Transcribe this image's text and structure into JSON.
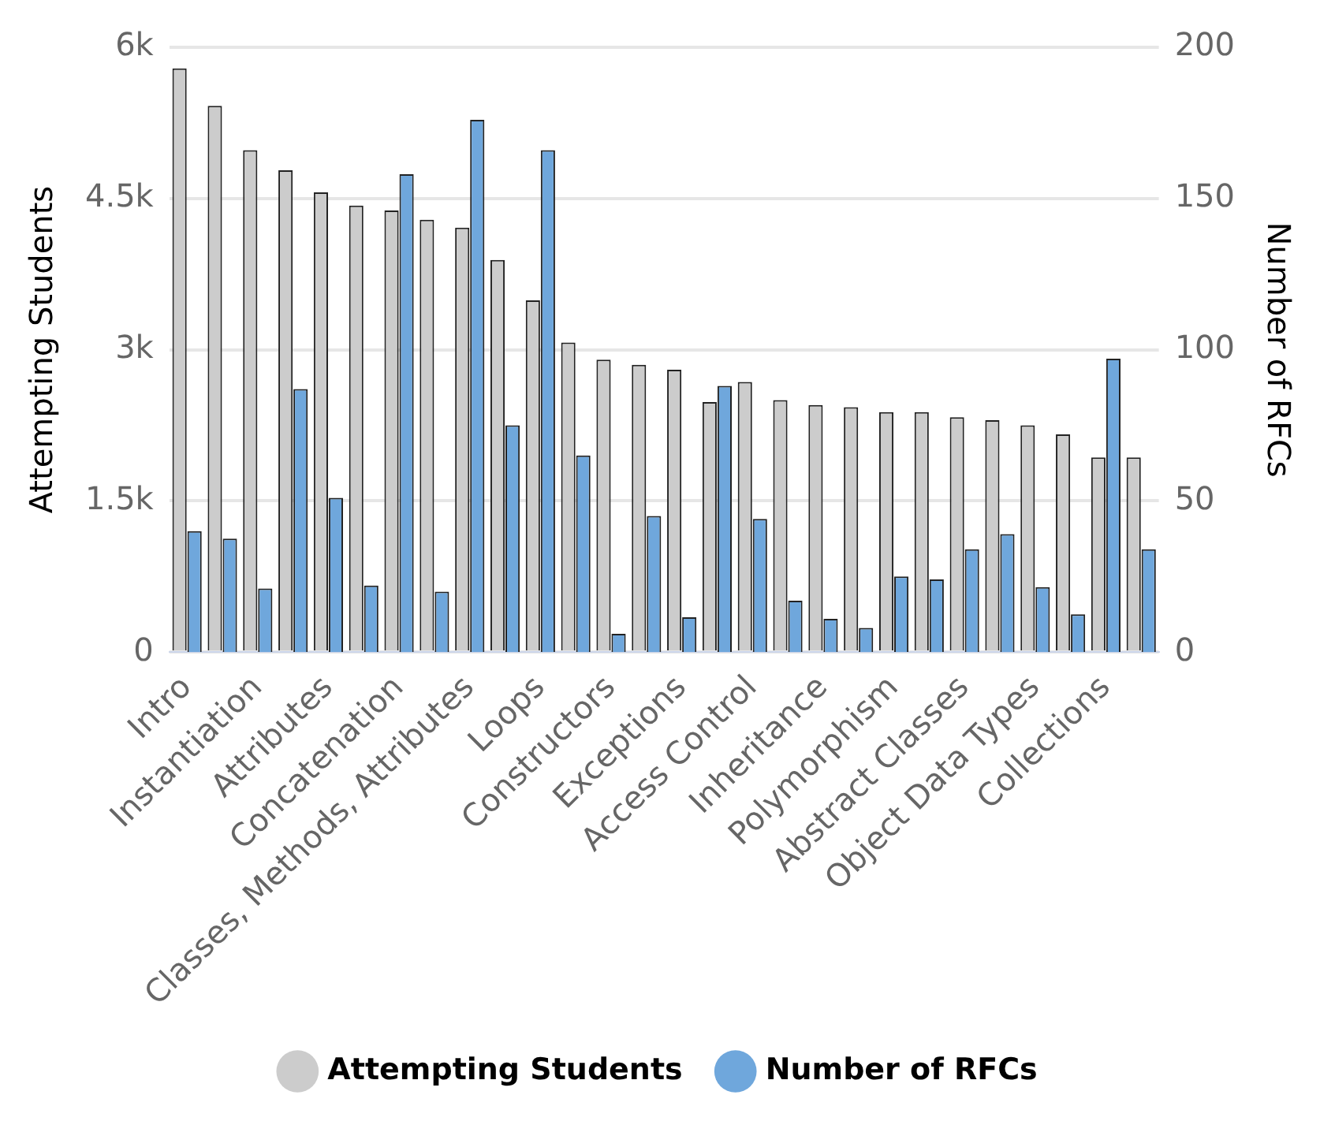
{
  "chart_data": {
    "type": "bar",
    "categories": [
      "Intro",
      null,
      "Instantiation",
      null,
      "Attributes",
      null,
      "Concatenation",
      null,
      "Classes, Methods, Attributes",
      null,
      "Loops",
      null,
      "Constructors",
      null,
      "Exceptions",
      null,
      "Access Control",
      null,
      "Inheritance",
      null,
      "Polymorphism",
      null,
      "Abstract Classes",
      null,
      "Object Data Types",
      null,
      "Collections",
      null
    ],
    "series": [
      {
        "name": "Attempting Students",
        "color": "#cccccc",
        "values": [
          5790,
          5420,
          4980,
          4780,
          4560,
          4430,
          4380,
          4290,
          4210,
          3890,
          3490,
          3070,
          2900,
          2850,
          2800,
          2480,
          2680,
          2500,
          2450,
          2430,
          2380,
          2380,
          2330,
          2300,
          2250,
          2160,
          1930,
          1930
        ]
      },
      {
        "name": "Number of RFCs",
        "color": "#6fa7dc",
        "axis": "y2",
        "values": [
          40,
          37.5,
          21,
          87,
          51,
          22,
          158,
          20,
          176,
          75,
          166,
          65,
          6,
          45,
          11.5,
          88,
          44,
          17,
          11,
          8,
          25,
          24,
          34,
          39,
          21.5,
          12.5,
          97,
          34
        ]
      }
    ],
    "ylabel": "Attempting Students",
    "y2label": "Number of RFCs",
    "ylim": [
      0,
      6000
    ],
    "yticks": [
      {
        "value": 0,
        "label": "0"
      },
      {
        "value": 1500,
        "label": "1.5k"
      },
      {
        "value": 3000,
        "label": "3k"
      },
      {
        "value": 4500,
        "label": "4.5k"
      },
      {
        "value": 6000,
        "label": "6k"
      }
    ],
    "y2lim": [
      0,
      200
    ],
    "y2ticks": [
      0,
      50,
      100,
      150,
      200
    ],
    "grid": "y",
    "legend": "bottom"
  }
}
